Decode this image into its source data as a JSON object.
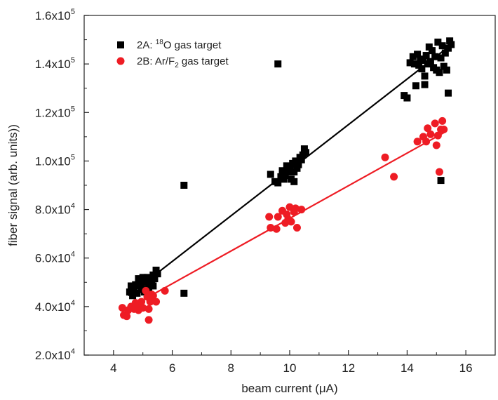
{
  "chart_data": {
    "type": "scatter",
    "title": "",
    "xlabel": "beam current (μA)",
    "ylabel": "fiber signal (arb. units))",
    "xlim": [
      3,
      17
    ],
    "ylim": [
      20000,
      160000
    ],
    "x_ticks": [
      4,
      6,
      8,
      10,
      12,
      14,
      16
    ],
    "y_ticks": [
      {
        "value": 20000,
        "mantissa": "2.0x10",
        "exp": "4"
      },
      {
        "value": 40000,
        "mantissa": "4.0x10",
        "exp": "4"
      },
      {
        "value": 60000,
        "mantissa": "6.0x10",
        "exp": "4"
      },
      {
        "value": 80000,
        "mantissa": "8.0x10",
        "exp": "4"
      },
      {
        "value": 100000,
        "mantissa": "1.0x10",
        "exp": "5"
      },
      {
        "value": 120000,
        "mantissa": "1.2x10",
        "exp": "5"
      },
      {
        "value": 140000,
        "mantissa": "1.4x10",
        "exp": "5"
      },
      {
        "value": 160000,
        "mantissa": "1.6x10",
        "exp": "5"
      }
    ],
    "legend_position": "top-left",
    "grid": false,
    "series": [
      {
        "name": "2A: 18O gas target",
        "legend": {
          "prefix": "2A: ",
          "sup": "18",
          "suffix": "O gas target"
        },
        "marker": "square",
        "color": "#000000",
        "fit": {
          "x": [
            4.5,
            15.3
          ],
          "y": [
            44500,
            146000
          ]
        },
        "points": [
          [
            4.55,
            46000
          ],
          [
            4.6,
            48500
          ],
          [
            4.65,
            44500
          ],
          [
            4.7,
            47000
          ],
          [
            4.8,
            45500
          ],
          [
            4.85,
            51500
          ],
          [
            4.9,
            49500
          ],
          [
            4.95,
            48000
          ],
          [
            5.0,
            52000
          ],
          [
            5.05,
            46000
          ],
          [
            5.1,
            50000
          ],
          [
            5.15,
            52000
          ],
          [
            5.2,
            47500
          ],
          [
            5.25,
            50500
          ],
          [
            5.3,
            49000
          ],
          [
            5.35,
            53000
          ],
          [
            5.4,
            51500
          ],
          [
            5.45,
            55000
          ],
          [
            5.5,
            53500
          ],
          [
            5.35,
            48500
          ],
          [
            5.0,
            47000
          ],
          [
            4.75,
            49000
          ],
          [
            6.4,
            90000
          ],
          [
            6.4,
            45500
          ],
          [
            9.6,
            140000
          ],
          [
            9.35,
            94500
          ],
          [
            9.5,
            91500
          ],
          [
            9.6,
            91000
          ],
          [
            9.7,
            93500
          ],
          [
            9.75,
            96000
          ],
          [
            9.8,
            92500
          ],
          [
            9.85,
            94000
          ],
          [
            9.9,
            98000
          ],
          [
            9.95,
            95500
          ],
          [
            10.0,
            97500
          ],
          [
            10.05,
            92500
          ],
          [
            10.1,
            99000
          ],
          [
            10.15,
            95500
          ],
          [
            10.2,
            100000
          ],
          [
            10.25,
            97000
          ],
          [
            10.3,
            98500
          ],
          [
            10.35,
            101500
          ],
          [
            10.4,
            100500
          ],
          [
            10.45,
            102500
          ],
          [
            10.5,
            105000
          ],
          [
            10.55,
            103500
          ],
          [
            10.15,
            91500
          ],
          [
            13.9,
            127000
          ],
          [
            14.0,
            126000
          ],
          [
            14.1,
            140500
          ],
          [
            14.2,
            143000
          ],
          [
            14.25,
            140000
          ],
          [
            14.3,
            131000
          ],
          [
            14.35,
            144000
          ],
          [
            14.4,
            139500
          ],
          [
            14.45,
            142000
          ],
          [
            14.5,
            138000
          ],
          [
            14.55,
            141500
          ],
          [
            14.6,
            131500
          ],
          [
            14.6,
            135000
          ],
          [
            14.65,
            143500
          ],
          [
            14.7,
            140000
          ],
          [
            14.75,
            147000
          ],
          [
            14.8,
            141000
          ],
          [
            14.85,
            145500
          ],
          [
            14.9,
            138500
          ],
          [
            14.95,
            143000
          ],
          [
            15.0,
            137500
          ],
          [
            15.05,
            149000
          ],
          [
            15.1,
            136500
          ],
          [
            15.15,
            142500
          ],
          [
            15.2,
            147500
          ],
          [
            15.25,
            139000
          ],
          [
            15.3,
            144500
          ],
          [
            15.35,
            137500
          ],
          [
            15.4,
            146500
          ],
          [
            15.45,
            149500
          ],
          [
            15.5,
            148000
          ],
          [
            15.4,
            128000
          ],
          [
            15.15,
            92000
          ]
        ]
      },
      {
        "name": "2B: Ar/F2 gas target",
        "legend": {
          "prefix": "2B: Ar/F",
          "sub": "2",
          "suffix": " gas target"
        },
        "marker": "circle",
        "color": "#ee1c24",
        "fit": {
          "x": [
            4.3,
            15.3
          ],
          "y": [
            38000,
            112000
          ]
        },
        "points": [
          [
            4.3,
            39500
          ],
          [
            4.35,
            36500
          ],
          [
            4.45,
            36000
          ],
          [
            4.5,
            38500
          ],
          [
            4.6,
            40000
          ],
          [
            4.7,
            39000
          ],
          [
            4.75,
            41500
          ],
          [
            4.8,
            40500
          ],
          [
            4.85,
            38500
          ],
          [
            4.95,
            42000
          ],
          [
            5.0,
            39500
          ],
          [
            5.1,
            46500
          ],
          [
            5.15,
            44000
          ],
          [
            5.2,
            39000
          ],
          [
            5.25,
            42000
          ],
          [
            5.3,
            45000
          ],
          [
            5.35,
            44500
          ],
          [
            5.45,
            42000
          ],
          [
            5.2,
            34500
          ],
          [
            5.75,
            46500
          ],
          [
            9.3,
            77000
          ],
          [
            9.35,
            72500
          ],
          [
            9.55,
            72000
          ],
          [
            9.6,
            77000
          ],
          [
            9.75,
            79500
          ],
          [
            9.85,
            74500
          ],
          [
            9.9,
            78000
          ],
          [
            9.95,
            76000
          ],
          [
            10.0,
            81000
          ],
          [
            10.05,
            75000
          ],
          [
            10.15,
            79000
          ],
          [
            10.2,
            80500
          ],
          [
            10.25,
            72500
          ],
          [
            10.4,
            80000
          ],
          [
            13.25,
            101500
          ],
          [
            13.55,
            93500
          ],
          [
            14.35,
            108000
          ],
          [
            14.55,
            110000
          ],
          [
            14.65,
            108000
          ],
          [
            14.7,
            113500
          ],
          [
            14.8,
            111000
          ],
          [
            14.95,
            115500
          ],
          [
            15.0,
            106500
          ],
          [
            15.05,
            110500
          ],
          [
            15.1,
            95500
          ],
          [
            15.15,
            113000
          ],
          [
            15.2,
            116500
          ],
          [
            15.25,
            113000
          ]
        ]
      }
    ]
  }
}
